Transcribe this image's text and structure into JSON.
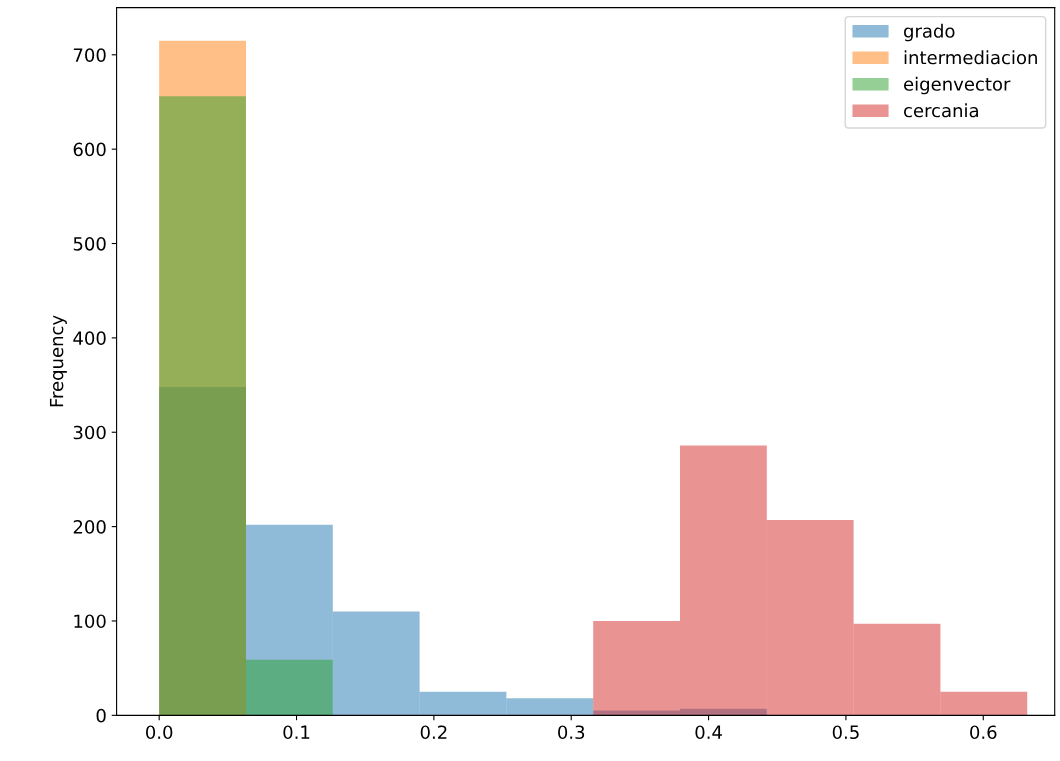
{
  "chart_data": {
    "type": "histogram",
    "ylabel": "Frequency",
    "bins": [
      0,
      0.0632,
      0.1264,
      0.1896,
      0.2528,
      0.316,
      0.3792,
      0.4424,
      0.5056,
      0.5688,
      0.632
    ],
    "series": [
      {
        "name": "grado",
        "color": "#1f77b4",
        "values": [
          348,
          202,
          110,
          25,
          18,
          5,
          7,
          0,
          0,
          0
        ]
      },
      {
        "name": "intermediacion",
        "color": "#ff7f0e",
        "values": [
          715,
          0,
          0,
          0,
          0,
          0,
          0,
          0,
          0,
          0
        ]
      },
      {
        "name": "eigenvector",
        "color": "#2ca02c",
        "values": [
          656,
          59,
          0,
          0,
          0,
          0,
          0,
          0,
          0,
          0
        ]
      },
      {
        "name": "cercania",
        "color": "#d62728",
        "values": [
          0,
          0,
          0,
          0,
          0,
          100,
          286,
          207,
          97,
          25
        ]
      }
    ],
    "xlim": [
      -0.031,
      0.652
    ],
    "xticks": [
      {
        "value": 0,
        "label": "0.0"
      },
      0.1,
      0.2,
      0.3,
      0.4,
      0.5,
      0.6
    ],
    "ylim": [
      0,
      750
    ],
    "yticks": [
      0,
      100,
      200,
      300,
      400,
      500,
      600,
      700
    ],
    "grid": false,
    "legend": "top right"
  }
}
